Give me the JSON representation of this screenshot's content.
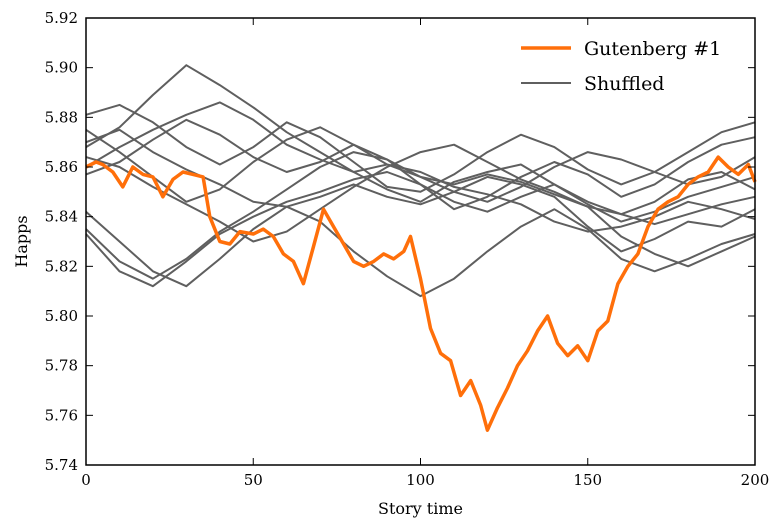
{
  "chart_data": {
    "type": "line",
    "title": "",
    "xlabel": "Story time",
    "ylabel": "Happs",
    "xlim": [
      0,
      200
    ],
    "ylim": [
      5.74,
      5.92
    ],
    "x_ticks": [
      "0",
      "50",
      "100",
      "150",
      "200"
    ],
    "y_ticks": [
      "5.74",
      "5.76",
      "5.78",
      "5.80",
      "5.82",
      "5.84",
      "5.86",
      "5.88",
      "5.90",
      "5.92"
    ],
    "grid": false,
    "legend_position": "top-right",
    "legend": [
      {
        "label": "Gutenberg #1",
        "color": "#ff6f0a"
      },
      {
        "label": "Shuffled",
        "color": "#5f5f5f"
      }
    ],
    "series": [
      {
        "name": "Gutenberg #1",
        "color": "#ff6f0a",
        "x": [
          0,
          3,
          5,
          8,
          11,
          14,
          17,
          20,
          23,
          26,
          29,
          32,
          35,
          37,
          40,
          43,
          46,
          50,
          53,
          56,
          59,
          62,
          65,
          68,
          71,
          74,
          77,
          80,
          83,
          86,
          89,
          92,
          95,
          97,
          100,
          103,
          106,
          109,
          112,
          115,
          118,
          120,
          123,
          126,
          129,
          132,
          135,
          138,
          141,
          144,
          147,
          150,
          153,
          156,
          159,
          162,
          165,
          168,
          171,
          174,
          177,
          180,
          183,
          186,
          189,
          192,
          195,
          198,
          200
        ],
        "y": [
          5.86,
          5.862,
          5.861,
          5.858,
          5.852,
          5.86,
          5.857,
          5.856,
          5.848,
          5.855,
          5.858,
          5.857,
          5.856,
          5.84,
          5.83,
          5.829,
          5.834,
          5.833,
          5.835,
          5.832,
          5.825,
          5.822,
          5.813,
          5.828,
          5.843,
          5.836,
          5.829,
          5.822,
          5.82,
          5.822,
          5.825,
          5.823,
          5.826,
          5.832,
          5.815,
          5.795,
          5.785,
          5.782,
          5.768,
          5.774,
          5.764,
          5.754,
          5.763,
          5.771,
          5.78,
          5.786,
          5.794,
          5.8,
          5.789,
          5.784,
          5.788,
          5.782,
          5.794,
          5.798,
          5.813,
          5.82,
          5.825,
          5.836,
          5.843,
          5.846,
          5.848,
          5.853,
          5.856,
          5.858,
          5.864,
          5.86,
          5.857,
          5.861,
          5.854
        ]
      },
      {
        "name": "Shuffled",
        "color": "#5f5f5f",
        "x": [
          0,
          10,
          20,
          30,
          40,
          50,
          60,
          70,
          80,
          90,
          100,
          110,
          120,
          130,
          140,
          150,
          160,
          170,
          180,
          190,
          200
        ],
        "y": [
          5.868,
          5.876,
          5.889,
          5.901,
          5.893,
          5.884,
          5.874,
          5.866,
          5.858,
          5.851,
          5.846,
          5.854,
          5.858,
          5.861,
          5.853,
          5.846,
          5.841,
          5.846,
          5.855,
          5.858,
          5.851
        ]
      },
      {
        "name": "Shuffled",
        "color": "#5f5f5f",
        "x": [
          0,
          10,
          20,
          30,
          40,
          50,
          60,
          70,
          80,
          90,
          100,
          110,
          120,
          130,
          140,
          150,
          160,
          170,
          180,
          190,
          200
        ],
        "y": [
          5.875,
          5.866,
          5.856,
          5.846,
          5.851,
          5.862,
          5.871,
          5.876,
          5.869,
          5.861,
          5.856,
          5.85,
          5.846,
          5.852,
          5.86,
          5.866,
          5.863,
          5.858,
          5.853,
          5.856,
          5.864
        ]
      },
      {
        "name": "Shuffled",
        "color": "#5f5f5f",
        "x": [
          0,
          10,
          20,
          30,
          40,
          50,
          60,
          70,
          80,
          90,
          100,
          110,
          120,
          130,
          140,
          150,
          160,
          170,
          180,
          190,
          200
        ],
        "y": [
          5.833,
          5.818,
          5.812,
          5.822,
          5.833,
          5.84,
          5.846,
          5.85,
          5.855,
          5.858,
          5.853,
          5.846,
          5.842,
          5.848,
          5.853,
          5.845,
          5.838,
          5.842,
          5.848,
          5.852,
          5.856
        ]
      },
      {
        "name": "Shuffled",
        "color": "#5f5f5f",
        "x": [
          0,
          10,
          20,
          30,
          40,
          50,
          60,
          70,
          80,
          90,
          100,
          110,
          120,
          130,
          140,
          150,
          160,
          170,
          180,
          190,
          200
        ],
        "y": [
          5.881,
          5.885,
          5.878,
          5.868,
          5.861,
          5.868,
          5.878,
          5.872,
          5.862,
          5.852,
          5.85,
          5.857,
          5.866,
          5.873,
          5.868,
          5.859,
          5.853,
          5.858,
          5.866,
          5.874,
          5.878
        ]
      },
      {
        "name": "Shuffled",
        "color": "#5f5f5f",
        "x": [
          0,
          10,
          20,
          30,
          40,
          50,
          60,
          70,
          80,
          90,
          100,
          110,
          120,
          130,
          140,
          150,
          160,
          170,
          180,
          190,
          200
        ],
        "y": [
          5.842,
          5.83,
          5.818,
          5.812,
          5.823,
          5.835,
          5.844,
          5.838,
          5.826,
          5.816,
          5.808,
          5.815,
          5.826,
          5.836,
          5.843,
          5.835,
          5.823,
          5.818,
          5.823,
          5.829,
          5.833
        ]
      },
      {
        "name": "Shuffled",
        "color": "#5f5f5f",
        "x": [
          0,
          10,
          20,
          30,
          40,
          50,
          60,
          70,
          80,
          90,
          100,
          110,
          120,
          130,
          140,
          150,
          160,
          170,
          180,
          190,
          200
        ],
        "y": [
          5.857,
          5.862,
          5.871,
          5.879,
          5.873,
          5.864,
          5.858,
          5.862,
          5.869,
          5.863,
          5.856,
          5.853,
          5.857,
          5.854,
          5.849,
          5.844,
          5.841,
          5.837,
          5.841,
          5.845,
          5.848
        ]
      },
      {
        "name": "Shuffled",
        "color": "#5f5f5f",
        "x": [
          0,
          10,
          20,
          30,
          40,
          50,
          60,
          70,
          80,
          90,
          100,
          110,
          120,
          130,
          140,
          150,
          160,
          170,
          180,
          190,
          200
        ],
        "y": [
          5.864,
          5.86,
          5.852,
          5.845,
          5.838,
          5.83,
          5.834,
          5.843,
          5.852,
          5.86,
          5.866,
          5.869,
          5.862,
          5.855,
          5.85,
          5.844,
          5.832,
          5.825,
          5.82,
          5.826,
          5.832
        ]
      },
      {
        "name": "Shuffled",
        "color": "#5f5f5f",
        "x": [
          0,
          10,
          20,
          30,
          40,
          50,
          60,
          70,
          80,
          90,
          100,
          110,
          120,
          130,
          140,
          150,
          160,
          170,
          180,
          190,
          200
        ],
        "y": [
          5.86,
          5.868,
          5.875,
          5.881,
          5.886,
          5.879,
          5.869,
          5.863,
          5.858,
          5.861,
          5.858,
          5.852,
          5.849,
          5.845,
          5.838,
          5.834,
          5.836,
          5.84,
          5.846,
          5.843,
          5.839
        ]
      },
      {
        "name": "Shuffled",
        "color": "#5f5f5f",
        "x": [
          0,
          10,
          20,
          30,
          40,
          50,
          60,
          70,
          80,
          90,
          100,
          110,
          120,
          130,
          140,
          150,
          160,
          170,
          180,
          190,
          200
        ],
        "y": [
          5.835,
          5.822,
          5.815,
          5.823,
          5.834,
          5.842,
          5.851,
          5.86,
          5.866,
          5.863,
          5.853,
          5.843,
          5.848,
          5.856,
          5.862,
          5.857,
          5.848,
          5.853,
          5.862,
          5.869,
          5.872
        ]
      },
      {
        "name": "Shuffled",
        "color": "#5f5f5f",
        "x": [
          0,
          10,
          20,
          30,
          40,
          50,
          60,
          70,
          80,
          90,
          100,
          110,
          120,
          130,
          140,
          150,
          160,
          170,
          180,
          190,
          200
        ],
        "y": [
          5.87,
          5.875,
          5.866,
          5.859,
          5.853,
          5.846,
          5.844,
          5.848,
          5.853,
          5.848,
          5.845,
          5.85,
          5.856,
          5.853,
          5.848,
          5.836,
          5.826,
          5.831,
          5.838,
          5.836,
          5.843
        ]
      }
    ]
  }
}
